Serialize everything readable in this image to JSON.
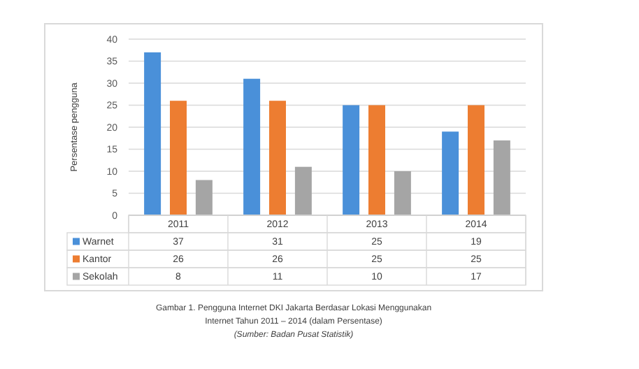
{
  "chart_data": {
    "type": "bar",
    "ylabel": "Persentase pengguna",
    "categories": [
      "2011",
      "2012",
      "2013",
      "2014"
    ],
    "series": [
      {
        "name": "Warnet",
        "color": "#4a90d9",
        "values": [
          37,
          31,
          25,
          19
        ]
      },
      {
        "name": "Kantor",
        "color": "#ed7d31",
        "values": [
          26,
          26,
          25,
          25
        ]
      },
      {
        "name": "Sekolah",
        "color": "#a5a5a5",
        "values": [
          8,
          11,
          10,
          17
        ]
      }
    ],
    "ylim": [
      0,
      40
    ],
    "yticks": [
      0,
      5,
      10,
      15,
      20,
      25,
      30,
      35,
      40
    ],
    "grid": "y",
    "legend": "bottom",
    "data_labels": true,
    "annotations": [
      "Gambar 1. Pengguna Internet DKI Jakarta Berdasar Lokasi Menggunakan Internet Tahun 2011 – 2014 (dalam Persentase)",
      "(Sumber: Badan Pusat Statistik)"
    ]
  }
}
